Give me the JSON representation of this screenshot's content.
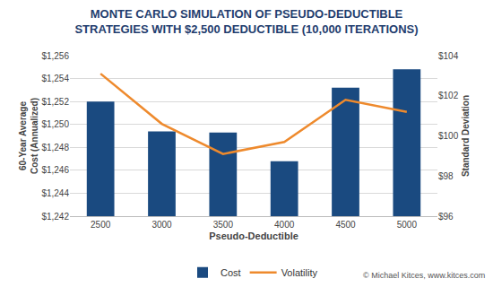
{
  "chart_data": {
    "type": "bar",
    "title": "MONTE CARLO SIMULATION OF PSEUDO-DEDUCTIBLE\nSTRATEGIES WITH $2,500 DEDUCTIBLE (10,000 ITERATIONS)",
    "x_label": "Pseudo-Deductible",
    "y_label": "60-Year Average\nCost (Annualized)",
    "y2_label": "Standard Deviation",
    "categories": [
      "2500",
      "3000",
      "3500",
      "4000",
      "4500",
      "5000"
    ],
    "series": [
      {
        "name": "Cost",
        "type": "bar",
        "color": "#1a4a80",
        "values": [
          1252.0,
          1249.4,
          1249.3,
          1246.8,
          1253.2,
          1254.8
        ]
      },
      {
        "name": "Volatility",
        "type": "line",
        "axis": "y2",
        "color": "#ee8a2d",
        "values": [
          103.1,
          100.6,
          99.1,
          99.7,
          101.8,
          101.2
        ]
      }
    ],
    "ylim": [
      1242,
      1256
    ],
    "yticks": [
      {
        "value": 1242,
        "label": "$1,242"
      },
      {
        "value": 1244,
        "label": "$1,244"
      },
      {
        "value": 1246,
        "label": "$1,246"
      },
      {
        "value": 1248,
        "label": "$1,248"
      },
      {
        "value": 1250,
        "label": "$1,250"
      },
      {
        "value": 1252,
        "label": "$1,252"
      },
      {
        "value": 1254,
        "label": "$1,254"
      },
      {
        "value": 1256,
        "label": "$1,256"
      }
    ],
    "y2lim": [
      96,
      104
    ],
    "y2ticks": [
      {
        "value": 96,
        "label": "$96"
      },
      {
        "value": 98,
        "label": "$98"
      },
      {
        "value": 100,
        "label": "$100"
      },
      {
        "value": 102,
        "label": "$102"
      },
      {
        "value": 104,
        "label": "$104"
      }
    ],
    "grid": true,
    "legend": "bottom",
    "annotations": [
      "© Michael Kitces, www.kitces.com"
    ]
  }
}
